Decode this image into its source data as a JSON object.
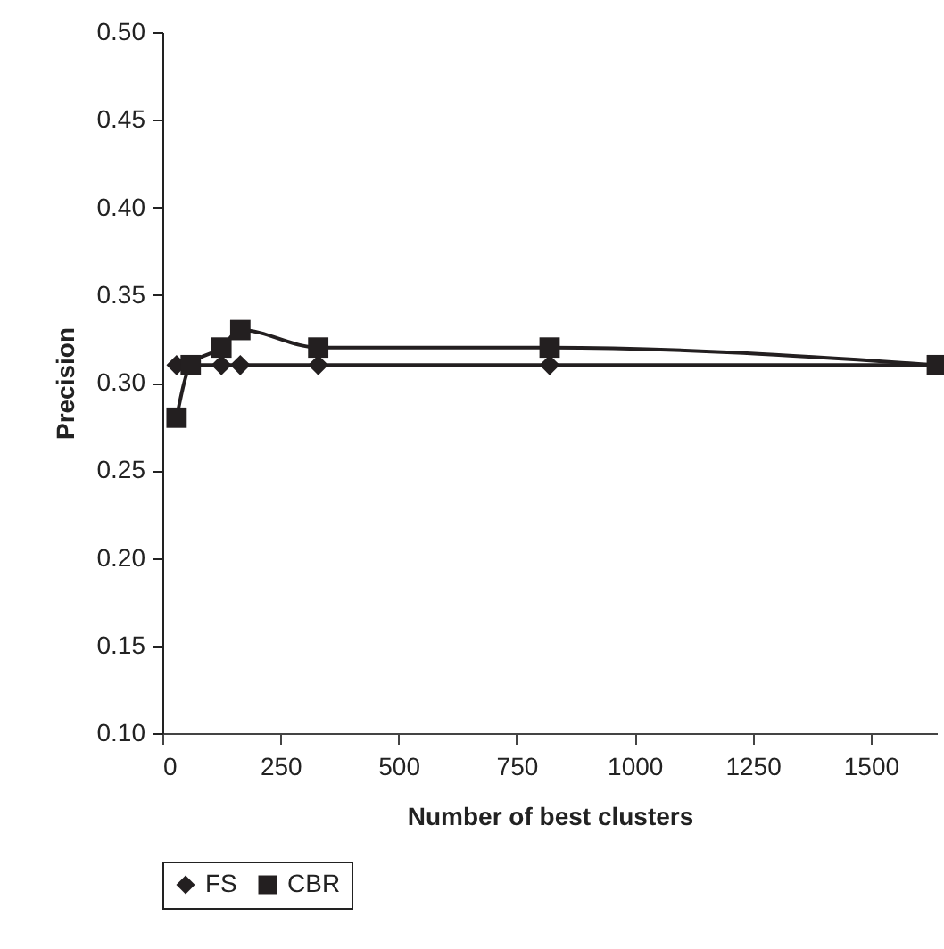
{
  "chart_data": {
    "type": "line",
    "xlabel": "Number of best clusters",
    "ylabel": "Precision",
    "x": [
      30,
      60,
      125,
      165,
      330,
      820,
      1640
    ],
    "series": [
      {
        "name": "FS",
        "color": "#231f20",
        "marker": "diamond",
        "values": [
          0.31,
          0.31,
          0.31,
          0.31,
          0.31,
          0.31,
          0.31
        ]
      },
      {
        "name": "CBR",
        "color": "#231f20",
        "marker": "square",
        "values": [
          0.28,
          0.31,
          0.32,
          0.33,
          0.32,
          0.32,
          0.31
        ]
      }
    ],
    "xlim": [
      0,
      1640
    ],
    "xticks": [
      0,
      250,
      500,
      750,
      1000,
      1250,
      1500
    ],
    "ylim": [
      0.1,
      0.5
    ],
    "yticks": [
      {
        "value": 0.1,
        "label": "0.10"
      },
      {
        "value": 0.15,
        "label": "0.15"
      },
      {
        "value": 0.2,
        "label": "0.20"
      },
      {
        "value": 0.25,
        "label": "0.25"
      },
      {
        "value": 0.3,
        "label": "0.30"
      },
      {
        "value": 0.35,
        "label": "0.35"
      },
      {
        "value": 0.4,
        "label": "0.40"
      },
      {
        "value": 0.45,
        "label": "0.45"
      },
      {
        "value": 0.5,
        "label": "0.50"
      }
    ],
    "grid": false,
    "legend": "bottom"
  }
}
